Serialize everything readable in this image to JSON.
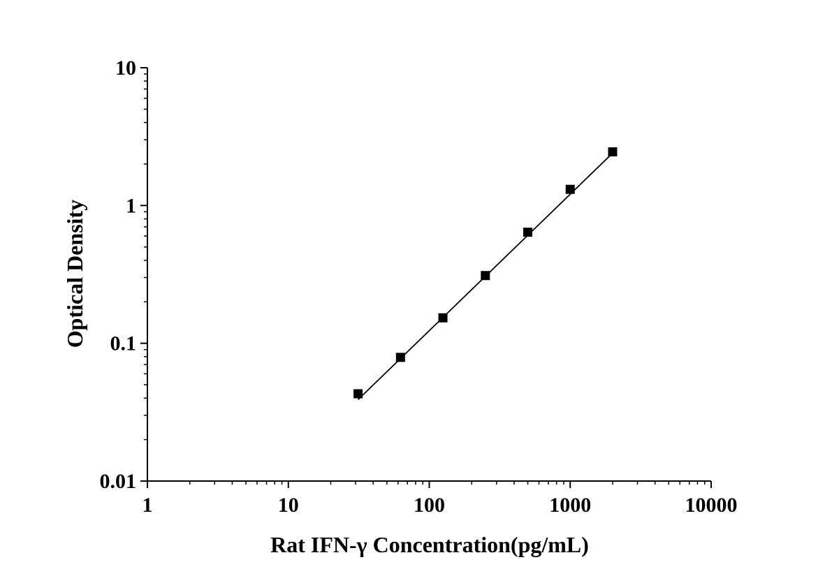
{
  "chart_data": {
    "type": "scatter",
    "title": "",
    "xlabel": "Rat IFN-γ Concentration(pg/mL)",
    "ylabel": "Optical Density",
    "x_scale": "log",
    "y_scale": "log",
    "xlim": [
      1,
      10000
    ],
    "ylim": [
      0.01,
      10
    ],
    "x_tick_labels": [
      "1",
      "10",
      "100",
      "1000",
      "10000"
    ],
    "y_tick_labels": [
      "0.01",
      "0.1",
      "1",
      "10"
    ],
    "grid": false,
    "legend": "none",
    "marker": "square",
    "color": "#000000",
    "series": [
      {
        "x": [
          31.25,
          62.5,
          125,
          250,
          500,
          1000,
          2000
        ],
        "y": [
          0.043,
          0.079,
          0.153,
          0.31,
          0.64,
          1.31,
          2.45
        ]
      }
    ],
    "fit_line": {
      "type": "line",
      "x": [
        31.25,
        2000
      ],
      "y": [
        0.039,
        2.4
      ]
    }
  }
}
